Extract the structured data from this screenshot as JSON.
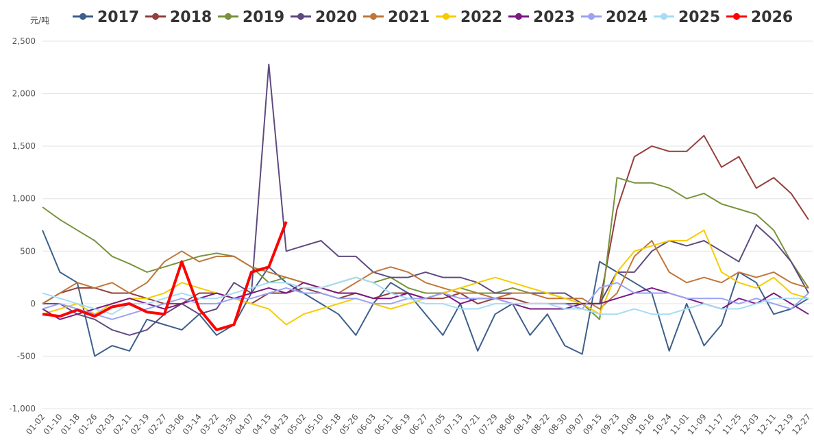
{
  "chart_data": {
    "type": "line",
    "y_unit": "元/吨",
    "legend": "top",
    "grid": true,
    "ylim": [
      -1000,
      2500
    ],
    "yticks": [
      {
        "value": -1000,
        "label": "-1,000"
      },
      {
        "value": -500,
        "label": "-500"
      },
      0,
      {
        "value": 500,
        "label": "500"
      },
      {
        "value": 1000,
        "label": "1,000"
      },
      {
        "value": 1500,
        "label": "1,500"
      },
      {
        "value": 2000,
        "label": "2,000"
      },
      {
        "value": 2500,
        "label": "2,500"
      }
    ],
    "categories": [
      "01-02",
      "01-10",
      "01-18",
      "01-26",
      "02-03",
      "02-11",
      "02-19",
      "02-27",
      "03-06",
      "03-14",
      "03-22",
      "03-30",
      "04-07",
      "04-15",
      "04-23",
      "05-02",
      "05-10",
      "05-18",
      "05-26",
      "06-03",
      "06-11",
      "06-19",
      "06-27",
      "07-05",
      "07-13",
      "07-21",
      "07-29",
      "08-06",
      "08-14",
      "08-22",
      "08-30",
      "09-07",
      "09-15",
      "09-23",
      "10-08",
      "10-16",
      "10-24",
      "11-01",
      "11-09",
      "11-17",
      "11-25",
      "12-03",
      "12-11",
      "12-19",
      "12-27"
    ],
    "series": [
      {
        "name": "2017",
        "color": "#3d5f8a",
        "width": 2,
        "values": [
          700,
          300,
          200,
          -500,
          -400,
          -450,
          -150,
          -200,
          -250,
          -100,
          -300,
          -200,
          100,
          350,
          200,
          100,
          0,
          -100,
          -300,
          0,
          200,
          100,
          -100,
          -300,
          0,
          -450,
          -100,
          0,
          -300,
          -100,
          -400,
          -480,
          400,
          300,
          200,
          100,
          -450,
          0,
          -400,
          -200,
          300,
          200,
          -100,
          -50,
          50
        ]
      },
      {
        "name": "2018",
        "color": "#943f3a",
        "width": 2,
        "values": [
          0,
          100,
          150,
          150,
          100,
          100,
          50,
          0,
          0,
          100,
          100,
          50,
          0,
          100,
          100,
          150,
          100,
          50,
          100,
          50,
          100,
          100,
          50,
          50,
          100,
          0,
          50,
          50,
          0,
          0,
          0,
          0,
          0,
          900,
          1400,
          1500,
          1450,
          1450,
          1600,
          1300,
          1400,
          1100,
          1200,
          1050,
          800
        ]
      },
      {
        "name": "2019",
        "color": "#77933c",
        "width": 2,
        "values": [
          920,
          800,
          700,
          600,
          450,
          380,
          300,
          350,
          400,
          450,
          480,
          450,
          350,
          200,
          250,
          200,
          150,
          200,
          250,
          200,
          250,
          150,
          100,
          100,
          150,
          100,
          100,
          150,
          100,
          100,
          50,
          0,
          -150,
          1200,
          1150,
          1150,
          1100,
          1000,
          1050,
          950,
          900,
          850,
          700,
          400,
          150
        ]
      },
      {
        "name": "2020",
        "color": "#5f4a7f",
        "width": 2,
        "values": [
          0,
          0,
          -100,
          -150,
          -250,
          -300,
          -250,
          -100,
          0,
          -100,
          -50,
          200,
          100,
          2280,
          500,
          550,
          600,
          450,
          450,
          300,
          250,
          250,
          300,
          250,
          250,
          200,
          100,
          100,
          100,
          100,
          100,
          0,
          0,
          300,
          300,
          500,
          600,
          550,
          600,
          500,
          400,
          750,
          600,
          400,
          100
        ]
      },
      {
        "name": "2021",
        "color": "#c0763a",
        "width": 2,
        "values": [
          0,
          100,
          200,
          150,
          200,
          100,
          200,
          400,
          500,
          400,
          450,
          450,
          350,
          300,
          250,
          200,
          150,
          100,
          200,
          300,
          350,
          300,
          200,
          150,
          100,
          100,
          50,
          100,
          100,
          50,
          50,
          50,
          -50,
          100,
          450,
          600,
          300,
          200,
          250,
          200,
          300,
          250,
          300,
          200,
          150
        ]
      },
      {
        "name": "2022",
        "color": "#f6cc00",
        "width": 2,
        "values": [
          -100,
          -50,
          0,
          -100,
          0,
          50,
          50,
          100,
          200,
          150,
          100,
          50,
          0,
          -50,
          -200,
          -100,
          -50,
          0,
          50,
          0,
          -50,
          0,
          50,
          100,
          150,
          200,
          250,
          200,
          150,
          100,
          50,
          0,
          -100,
          300,
          500,
          550,
          600,
          600,
          700,
          300,
          200,
          150,
          250,
          100,
          50
        ]
      },
      {
        "name": "2023",
        "color": "#7b1a83",
        "width": 2,
        "values": [
          -50,
          -150,
          -100,
          -50,
          0,
          50,
          0,
          -50,
          0,
          50,
          100,
          50,
          100,
          150,
          100,
          200,
          150,
          100,
          100,
          50,
          50,
          100,
          50,
          100,
          0,
          50,
          50,
          0,
          -50,
          -50,
          -50,
          0,
          0,
          50,
          100,
          150,
          100,
          50,
          0,
          -50,
          50,
          0,
          100,
          0,
          -100
        ]
      },
      {
        "name": "2024",
        "color": "#9aa3f5",
        "width": 2,
        "values": [
          -50,
          0,
          -50,
          -100,
          -150,
          -100,
          -50,
          0,
          50,
          0,
          0,
          50,
          50,
          100,
          150,
          100,
          100,
          50,
          50,
          0,
          0,
          50,
          50,
          100,
          50,
          50,
          50,
          0,
          0,
          0,
          0,
          -50,
          150,
          200,
          100,
          100,
          100,
          50,
          50,
          50,
          0,
          50,
          0,
          -50,
          100
        ]
      },
      {
        "name": "2025",
        "color": "#a6dcf5",
        "width": 2,
        "values": [
          100,
          50,
          0,
          -50,
          -100,
          0,
          0,
          50,
          100,
          50,
          50,
          100,
          150,
          200,
          200,
          150,
          150,
          200,
          250,
          200,
          100,
          50,
          0,
          0,
          -50,
          -50,
          0,
          0,
          0,
          0,
          -50,
          -50,
          -100,
          -100,
          -50,
          -100,
          -100,
          -50,
          0,
          -50,
          -50,
          0,
          50,
          50,
          50
        ]
      },
      {
        "name": "2026",
        "color": "#ff0000",
        "width": 4,
        "values": [
          -100,
          -120,
          -60,
          -120,
          -30,
          0,
          -80,
          -100,
          400,
          -50,
          -250,
          -200,
          300,
          350,
          780,
          null,
          null,
          null,
          null,
          null,
          null,
          null,
          null,
          null,
          null,
          null,
          null,
          null,
          null,
          null,
          null,
          null,
          null,
          null,
          null,
          null,
          null,
          null,
          null,
          null,
          null,
          null,
          null,
          null,
          null
        ]
      }
    ]
  }
}
